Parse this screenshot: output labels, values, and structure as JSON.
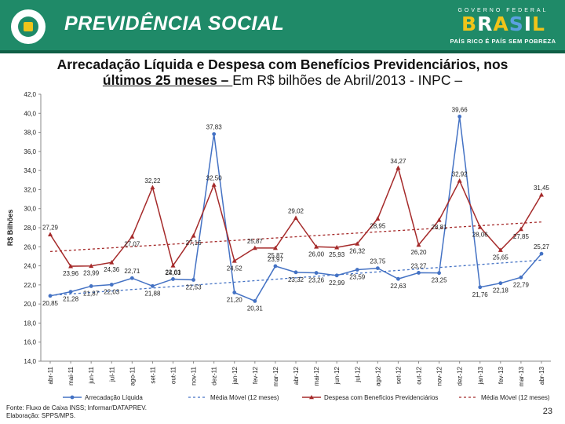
{
  "header": {
    "brand": "PREVIDÊNCIA SOCIAL",
    "gov_top": "GOVERNO FEDERAL",
    "gov_word": [
      "B",
      "R",
      "A",
      "S",
      "I",
      "L"
    ],
    "gov_sub": "PAÍS RICO É PAÍS SEM POBREZA"
  },
  "title": {
    "line1": "Arrecadação Líquida e Despesa com Benefícios Previdenciários, nos",
    "bold2": "últimos 25 meses – ",
    "rest2": "Em R$ bilhões de Abril/2013 - INPC –"
  },
  "footer": {
    "source": "Fonte: Fluxo de Caixa INSS; Informar/DATAPREV.",
    "prepared": "Elaboração: SPPS/MPS.",
    "page": "23"
  },
  "colors": {
    "series_revenue": "#4472c4",
    "series_expense": "#a52a2a",
    "brand_green": "#1f8a68",
    "brasil_letters": [
      "#f0c419",
      "#ffffff",
      "#f0c419",
      "#5aa0e0",
      "#ffffff",
      "#f0c419"
    ]
  },
  "chart_data": {
    "type": "line",
    "ylabel": "R$ Bilhões",
    "ylim": [
      14.0,
      42.0
    ],
    "ytick_step": 2.0,
    "yticks": [
      "14,0",
      "16,0",
      "18,0",
      "20,0",
      "22,0",
      "24,0",
      "26,0",
      "28,0",
      "30,0",
      "32,0",
      "34,0",
      "36,0",
      "38,0",
      "40,0",
      "42,0"
    ],
    "categories": [
      "abr-11",
      "mai-11",
      "jun-11",
      "jul-11",
      "ago-11",
      "set-11",
      "out-11",
      "nov-11",
      "dez-11",
      "jan-12",
      "fev-12",
      "mar-12",
      "abr-12",
      "mai-12",
      "jun-12",
      "jul-12",
      "ago-12",
      "set-12",
      "out-12",
      "nov-12",
      "dez-12",
      "jan-13",
      "fev-13",
      "mar-13",
      "abr-13"
    ],
    "series": [
      {
        "name": "Arrecadação Líquida",
        "values": [
          20.85,
          21.28,
          21.87,
          22.03,
          22.71,
          21.88,
          22.61,
          22.53,
          37.83,
          21.2,
          20.31,
          23.97,
          23.32,
          23.26,
          22.99,
          23.59,
          23.75,
          22.63,
          23.27,
          23.25,
          39.66,
          21.76,
          22.18,
          22.79,
          25.27
        ],
        "labels": [
          "20,85",
          "21,28",
          "21,87",
          "22,03",
          "22,71",
          "21,88",
          "22,61",
          "22,53",
          "37,83",
          "21,20",
          "20,31",
          "23,97",
          "23,32",
          "23,26",
          "22,99",
          "23,59",
          "23,75",
          "22,63",
          "23,27",
          "23,25",
          "39,66",
          "21,76",
          "22,18",
          "22,79",
          "25,27"
        ]
      },
      {
        "name": "Despesa com Benefícios Previdenciários",
        "values": [
          27.29,
          23.96,
          23.99,
          24.36,
          27.07,
          32.22,
          24.03,
          27.16,
          32.5,
          24.52,
          25.87,
          25.87,
          29.02,
          26.0,
          25.93,
          26.32,
          28.95,
          34.27,
          26.2,
          28.81,
          32.92,
          28.06,
          25.65,
          27.85,
          31.45
        ],
        "labels": [
          "27,29",
          "23,96",
          "23,99",
          "24,36",
          "27,07",
          "32,22",
          "24,03",
          "27,16",
          "32,50",
          "24,52",
          "25,87",
          "25,87",
          "29,02",
          "26,00",
          "25,93",
          "26,32",
          "28,95",
          "34,27",
          "26,20",
          "28,81",
          "32,92",
          "28,06",
          "25,65",
          "27,85",
          "31,45"
        ]
      }
    ],
    "trend_lines": [
      {
        "name": "Média Móvel (12 meses)",
        "of": "Arrecadação Líquida",
        "start": 20.9,
        "end": 24.6
      },
      {
        "name": "Média Móvel (12 meses)",
        "of": "Despesa com Benefícios Previdenciários",
        "start": 25.5,
        "end": 28.6
      }
    ],
    "legend": {
      "position": "bottom",
      "items": [
        "Arrecadação Líquida",
        "Média Móvel (12 meses)",
        "Despesa com Benefícios Previdenciários",
        "Média Móvel (12 meses)"
      ]
    }
  }
}
